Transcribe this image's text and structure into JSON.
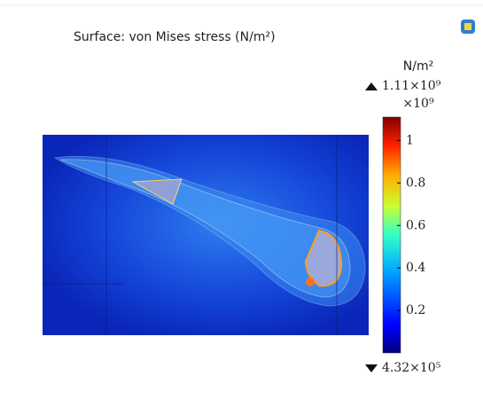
{
  "chart_data": {
    "type": "surface",
    "title": "Surface: von Mises stress (N/m²)",
    "colorbar": {
      "unit": "N/m²",
      "scale_label": "×10⁹",
      "max": {
        "value": 1.11,
        "label": "1.11×10⁹"
      },
      "min": {
        "value": 0.000432,
        "label": "4.32×10⁵"
      },
      "ticks": [
        0.2,
        0.4,
        0.6,
        0.8,
        1
      ]
    }
  }
}
